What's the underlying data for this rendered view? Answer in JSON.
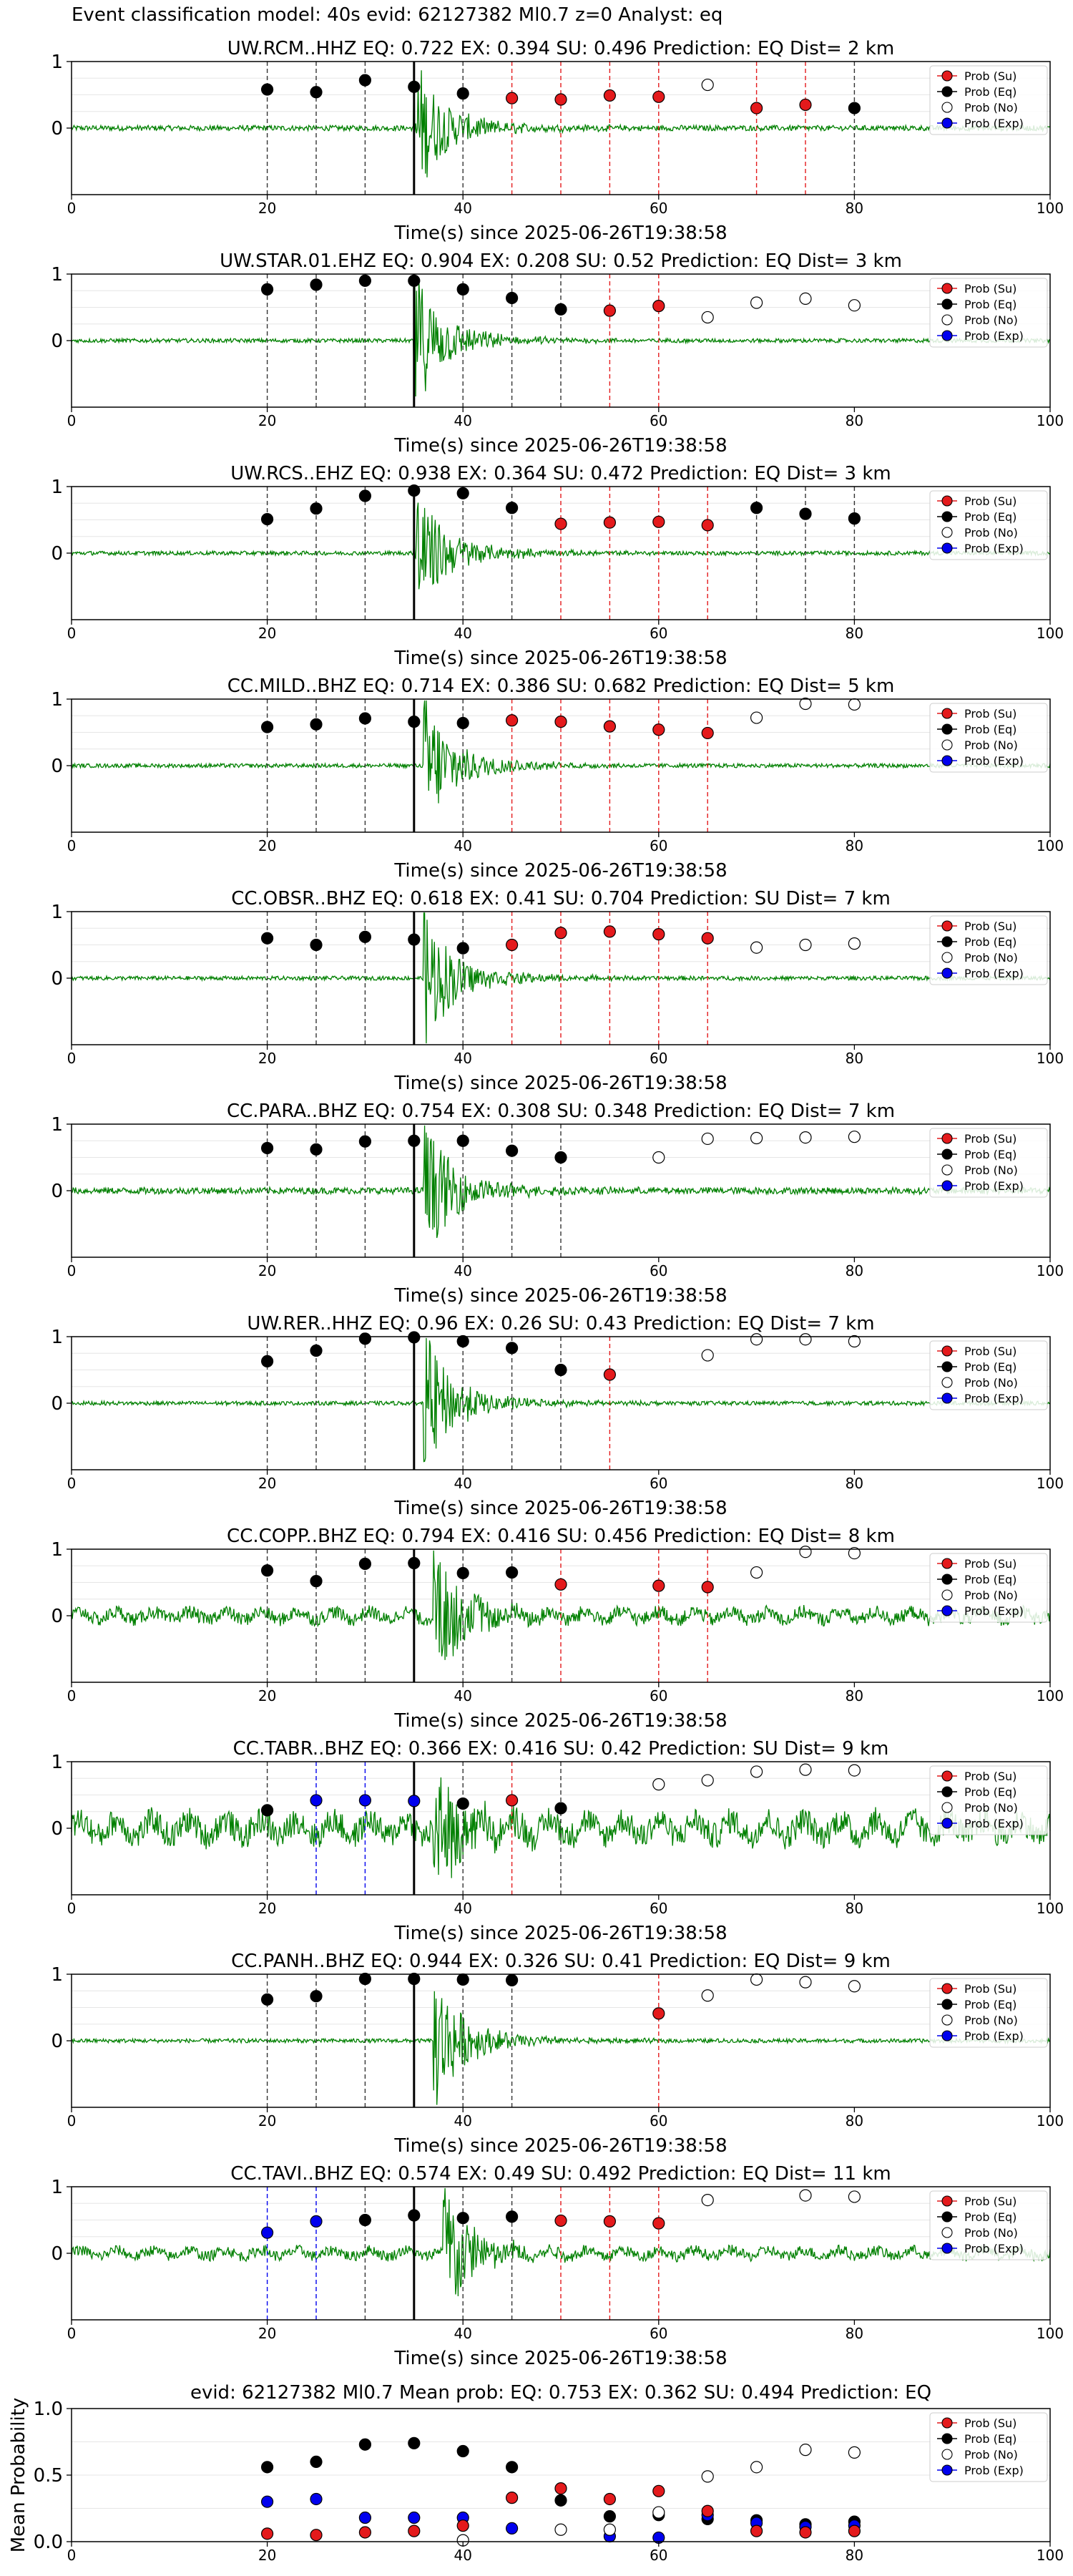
{
  "figure": {
    "suptitle": "Event classification model: 40s evid: 62127382 Ml0.7 z=0 Analyst: eq",
    "xlabel": "Time(s) since 2025-06-26T19:38:58",
    "xlim": [
      0,
      100
    ],
    "xticks": [
      0,
      20,
      40,
      60,
      80,
      100
    ],
    "event_line_x": 35,
    "colors": {
      "Su": "#e41a1c",
      "Eq": "#000000",
      "No": "#ffffff",
      "Exp": "#0000ee",
      "waveform": "#008000"
    },
    "legend_items": [
      {
        "key": "Su",
        "label": "Prob (Su)"
      },
      {
        "key": "Eq",
        "label": "Prob (Eq)"
      },
      {
        "key": "No",
        "label": "Prob (No)"
      },
      {
        "key": "Exp",
        "label": "Prob (Exp)"
      }
    ]
  },
  "chart_data": [
    {
      "type": "scatter",
      "title": "UW.RCM..HHZ   EQ: 0.722  EX: 0.394  SU: 0.496   Prediction: EQ    Dist= 2 km",
      "yticks": [
        "1",
        "0"
      ],
      "ylim": [
        -1,
        1
      ],
      "arrival": 35,
      "noise": 0.04,
      "points": [
        [
          20,
          0.58,
          "Eq"
        ],
        [
          25,
          0.54,
          "Eq"
        ],
        [
          30,
          0.72,
          "Eq"
        ],
        [
          35,
          0.62,
          "Eq"
        ],
        [
          40,
          0.52,
          "Eq"
        ],
        [
          45,
          0.45,
          "Su"
        ],
        [
          50,
          0.43,
          "Su"
        ],
        [
          55,
          0.49,
          "Su"
        ],
        [
          60,
          0.47,
          "Su"
        ],
        [
          65,
          0.65,
          "No"
        ],
        [
          70,
          0.3,
          "Su"
        ],
        [
          75,
          0.35,
          "Su"
        ],
        [
          80,
          0.3,
          "Eq"
        ]
      ]
    },
    {
      "type": "scatter",
      "title": "UW.STAR.01.EHZ   EQ: 0.904  EX: 0.208  SU: 0.52   Prediction: EQ    Dist= 3 km",
      "yticks": [
        "1",
        "0"
      ],
      "ylim": [
        -1,
        1
      ],
      "arrival": 35,
      "noise": 0.03,
      "points": [
        [
          20,
          0.77,
          "Eq"
        ],
        [
          25,
          0.84,
          "Eq"
        ],
        [
          30,
          0.9,
          "Eq"
        ],
        [
          35,
          0.9,
          "Eq"
        ],
        [
          40,
          0.77,
          "Eq"
        ],
        [
          45,
          0.64,
          "Eq"
        ],
        [
          50,
          0.47,
          "Eq"
        ],
        [
          55,
          0.45,
          "Su"
        ],
        [
          60,
          0.52,
          "Su"
        ],
        [
          65,
          0.35,
          "No"
        ],
        [
          70,
          0.57,
          "No"
        ],
        [
          75,
          0.63,
          "No"
        ],
        [
          80,
          0.53,
          "No"
        ]
      ]
    },
    {
      "type": "scatter",
      "title": "UW.RCS..EHZ   EQ: 0.938  EX: 0.364  SU: 0.472   Prediction: EQ    Dist= 3 km",
      "yticks": [
        "1",
        "0"
      ],
      "ylim": [
        -1,
        1
      ],
      "arrival": 35,
      "noise": 0.03,
      "points": [
        [
          20,
          0.51,
          "Eq"
        ],
        [
          25,
          0.67,
          "Eq"
        ],
        [
          30,
          0.86,
          "Eq"
        ],
        [
          35,
          0.94,
          "Eq"
        ],
        [
          40,
          0.9,
          "Eq"
        ],
        [
          45,
          0.68,
          "Eq"
        ],
        [
          50,
          0.44,
          "Su"
        ],
        [
          55,
          0.46,
          "Su"
        ],
        [
          60,
          0.47,
          "Su"
        ],
        [
          65,
          0.42,
          "Su"
        ],
        [
          70,
          0.68,
          "Eq"
        ],
        [
          75,
          0.59,
          "Eq"
        ],
        [
          80,
          0.52,
          "Eq"
        ]
      ]
    },
    {
      "type": "scatter",
      "title": "CC.MILD..BHZ   EQ: 0.714  EX: 0.386  SU: 0.682   Prediction: EQ    Dist= 5 km",
      "yticks": [
        "1",
        "0"
      ],
      "ylim": [
        -1,
        1
      ],
      "arrival": 36,
      "noise": 0.03,
      "points": [
        [
          20,
          0.58,
          "Eq"
        ],
        [
          25,
          0.62,
          "Eq"
        ],
        [
          30,
          0.71,
          "Eq"
        ],
        [
          35,
          0.66,
          "Eq"
        ],
        [
          40,
          0.64,
          "Eq"
        ],
        [
          45,
          0.68,
          "Su"
        ],
        [
          50,
          0.66,
          "Su"
        ],
        [
          55,
          0.59,
          "Su"
        ],
        [
          60,
          0.54,
          "Su"
        ],
        [
          65,
          0.49,
          "Su"
        ],
        [
          70,
          0.72,
          "No"
        ],
        [
          75,
          0.93,
          "No"
        ],
        [
          80,
          0.92,
          "No"
        ]
      ]
    },
    {
      "type": "scatter",
      "title": "CC.OBSR..BHZ   EQ: 0.618  EX: 0.41  SU: 0.704   Prediction: SU    Dist= 7 km",
      "yticks": [
        "1",
        "0"
      ],
      "ylim": [
        -1,
        1
      ],
      "arrival": 36,
      "noise": 0.03,
      "points": [
        [
          20,
          0.6,
          "Eq"
        ],
        [
          25,
          0.5,
          "Eq"
        ],
        [
          30,
          0.62,
          "Eq"
        ],
        [
          35,
          0.58,
          "Eq"
        ],
        [
          40,
          0.45,
          "Eq"
        ],
        [
          45,
          0.5,
          "Su"
        ],
        [
          50,
          0.68,
          "Su"
        ],
        [
          55,
          0.7,
          "Su"
        ],
        [
          60,
          0.66,
          "Su"
        ],
        [
          65,
          0.6,
          "Su"
        ],
        [
          70,
          0.46,
          "No"
        ],
        [
          75,
          0.5,
          "No"
        ],
        [
          80,
          0.52,
          "No"
        ]
      ]
    },
    {
      "type": "scatter",
      "title": "CC.PARA..BHZ   EQ: 0.754  EX: 0.308  SU: 0.348   Prediction: EQ    Dist= 7 km",
      "yticks": [
        "1",
        "0"
      ],
      "ylim": [
        -1,
        1
      ],
      "arrival": 36,
      "noise": 0.05,
      "points": [
        [
          20,
          0.64,
          "Eq"
        ],
        [
          25,
          0.62,
          "Eq"
        ],
        [
          30,
          0.74,
          "Eq"
        ],
        [
          35,
          0.75,
          "Eq"
        ],
        [
          40,
          0.75,
          "Eq"
        ],
        [
          45,
          0.6,
          "Eq"
        ],
        [
          50,
          0.5,
          "Eq"
        ],
        [
          60,
          0.5,
          "No"
        ],
        [
          65,
          0.78,
          "No"
        ],
        [
          70,
          0.79,
          "No"
        ],
        [
          75,
          0.8,
          "No"
        ],
        [
          80,
          0.81,
          "No"
        ]
      ]
    },
    {
      "type": "scatter",
      "title": "UW.RER..HHZ   EQ: 0.96  EX: 0.26  SU: 0.43   Prediction: EQ    Dist= 7 km",
      "yticks": [
        "1",
        "0"
      ],
      "ylim": [
        -1,
        1
      ],
      "arrival": 36,
      "noise": 0.03,
      "points": [
        [
          20,
          0.63,
          "Eq"
        ],
        [
          25,
          0.79,
          "Eq"
        ],
        [
          30,
          0.97,
          "Eq"
        ],
        [
          35,
          0.99,
          "Eq"
        ],
        [
          40,
          0.93,
          "Eq"
        ],
        [
          45,
          0.83,
          "Eq"
        ],
        [
          50,
          0.5,
          "Eq"
        ],
        [
          55,
          0.43,
          "Su"
        ],
        [
          65,
          0.72,
          "No"
        ],
        [
          70,
          0.96,
          "No"
        ],
        [
          75,
          0.96,
          "No"
        ],
        [
          80,
          0.93,
          "No"
        ]
      ]
    },
    {
      "type": "scatter",
      "title": "CC.COPP..BHZ   EQ: 0.794  EX: 0.416  SU: 0.456   Prediction: EQ    Dist= 8 km",
      "yticks": [
        "1",
        "0"
      ],
      "ylim": [
        -1,
        1
      ],
      "arrival": 37,
      "noise": 0.1,
      "points": [
        [
          20,
          0.68,
          "Eq"
        ],
        [
          25,
          0.52,
          "Eq"
        ],
        [
          30,
          0.78,
          "Eq"
        ],
        [
          35,
          0.79,
          "Eq"
        ],
        [
          40,
          0.64,
          "Eq"
        ],
        [
          45,
          0.65,
          "Eq"
        ],
        [
          50,
          0.47,
          "Su"
        ],
        [
          60,
          0.45,
          "Su"
        ],
        [
          65,
          0.43,
          "Su"
        ],
        [
          70,
          0.65,
          "No"
        ],
        [
          75,
          0.96,
          "No"
        ],
        [
          80,
          0.94,
          "No"
        ]
      ]
    },
    {
      "type": "scatter",
      "title": "CC.TABR..BHZ   EQ: 0.366  EX: 0.416  SU: 0.42   Prediction: SU    Dist= 9 km",
      "yticks": [
        "1",
        "0"
      ],
      "ylim": [
        -1,
        1
      ],
      "arrival": 37,
      "noise": 0.2,
      "points": [
        [
          20,
          0.27,
          "Eq"
        ],
        [
          25,
          0.42,
          "Exp"
        ],
        [
          30,
          0.42,
          "Exp"
        ],
        [
          35,
          0.41,
          "Exp"
        ],
        [
          40,
          0.37,
          "Eq"
        ],
        [
          45,
          0.42,
          "Su"
        ],
        [
          50,
          0.3,
          "Eq"
        ],
        [
          60,
          0.66,
          "No"
        ],
        [
          65,
          0.72,
          "No"
        ],
        [
          70,
          0.85,
          "No"
        ],
        [
          75,
          0.88,
          "No"
        ],
        [
          80,
          0.87,
          "No"
        ]
      ]
    },
    {
      "type": "scatter",
      "title": "CC.PANH..BHZ   EQ: 0.944  EX: 0.326  SU: 0.41   Prediction: EQ    Dist= 9 km",
      "yticks": [
        "1",
        "0"
      ],
      "ylim": [
        -1,
        1
      ],
      "arrival": 37,
      "noise": 0.03,
      "points": [
        [
          20,
          0.62,
          "Eq"
        ],
        [
          25,
          0.67,
          "Eq"
        ],
        [
          30,
          0.93,
          "Eq"
        ],
        [
          35,
          0.93,
          "Eq"
        ],
        [
          40,
          0.92,
          "Eq"
        ],
        [
          45,
          0.91,
          "Eq"
        ],
        [
          60,
          0.41,
          "Su"
        ],
        [
          65,
          0.68,
          "No"
        ],
        [
          70,
          0.92,
          "No"
        ],
        [
          75,
          0.88,
          "No"
        ],
        [
          80,
          0.82,
          "No"
        ]
      ]
    },
    {
      "type": "scatter",
      "title": "CC.TAVI..BHZ   EQ: 0.574  EX: 0.49  SU: 0.492   Prediction: EQ    Dist= 11 km",
      "yticks": [
        "1",
        "0"
      ],
      "ylim": [
        -1,
        1
      ],
      "arrival": 38,
      "noise": 0.08,
      "points": [
        [
          20,
          0.31,
          "Exp"
        ],
        [
          25,
          0.48,
          "Exp"
        ],
        [
          30,
          0.5,
          "Eq"
        ],
        [
          35,
          0.57,
          "Eq"
        ],
        [
          40,
          0.53,
          "Eq"
        ],
        [
          45,
          0.55,
          "Eq"
        ],
        [
          50,
          0.49,
          "Su"
        ],
        [
          55,
          0.48,
          "Su"
        ],
        [
          60,
          0.45,
          "Su"
        ],
        [
          65,
          0.8,
          "No"
        ],
        [
          75,
          0.87,
          "No"
        ],
        [
          80,
          0.85,
          "No"
        ]
      ]
    },
    {
      "type": "scatter",
      "title": "evid: 62127382  Ml0.7   Mean prob:   EQ: 0.753  EX: 0.362  SU: 0.494   Prediction: EQ",
      "ylabel": "Mean Probability",
      "yticks": [
        "1.0",
        "0.5",
        "0.0"
      ],
      "ylim": [
        0,
        1
      ],
      "summary": true,
      "points": [
        [
          20,
          0.56,
          "Eq"
        ],
        [
          25,
          0.6,
          "Eq"
        ],
        [
          30,
          0.73,
          "Eq"
        ],
        [
          35,
          0.74,
          "Eq"
        ],
        [
          40,
          0.68,
          "Eq"
        ],
        [
          45,
          0.56,
          "Eq"
        ],
        [
          50,
          0.31,
          "Eq"
        ],
        [
          55,
          0.19,
          "Eq"
        ],
        [
          60,
          0.2,
          "Eq"
        ],
        [
          65,
          0.17,
          "Eq"
        ],
        [
          70,
          0.16,
          "Eq"
        ],
        [
          75,
          0.13,
          "Eq"
        ],
        [
          80,
          0.15,
          "Eq"
        ],
        [
          20,
          0.3,
          "Exp"
        ],
        [
          25,
          0.32,
          "Exp"
        ],
        [
          30,
          0.18,
          "Exp"
        ],
        [
          35,
          0.18,
          "Exp"
        ],
        [
          40,
          0.18,
          "Exp"
        ],
        [
          45,
          0.1,
          "Exp"
        ],
        [
          55,
          0.04,
          "Exp"
        ],
        [
          60,
          0.03,
          "Exp"
        ],
        [
          65,
          0.2,
          "Exp"
        ],
        [
          70,
          0.14,
          "Exp"
        ],
        [
          75,
          0.11,
          "Exp"
        ],
        [
          80,
          0.12,
          "Exp"
        ],
        [
          20,
          0.06,
          "Su"
        ],
        [
          25,
          0.05,
          "Su"
        ],
        [
          30,
          0.07,
          "Su"
        ],
        [
          35,
          0.08,
          "Su"
        ],
        [
          40,
          0.12,
          "Su"
        ],
        [
          45,
          0.33,
          "Su"
        ],
        [
          50,
          0.4,
          "Su"
        ],
        [
          55,
          0.32,
          "Su"
        ],
        [
          60,
          0.38,
          "Su"
        ],
        [
          65,
          0.23,
          "Su"
        ],
        [
          70,
          0.08,
          "Su"
        ],
        [
          75,
          0.07,
          "Su"
        ],
        [
          80,
          0.08,
          "Su"
        ],
        [
          40,
          0.01,
          "No"
        ],
        [
          50,
          0.09,
          "No"
        ],
        [
          55,
          0.09,
          "No"
        ],
        [
          60,
          0.22,
          "No"
        ],
        [
          65,
          0.49,
          "No"
        ],
        [
          70,
          0.56,
          "No"
        ],
        [
          75,
          0.69,
          "No"
        ],
        [
          80,
          0.67,
          "No"
        ]
      ]
    }
  ]
}
